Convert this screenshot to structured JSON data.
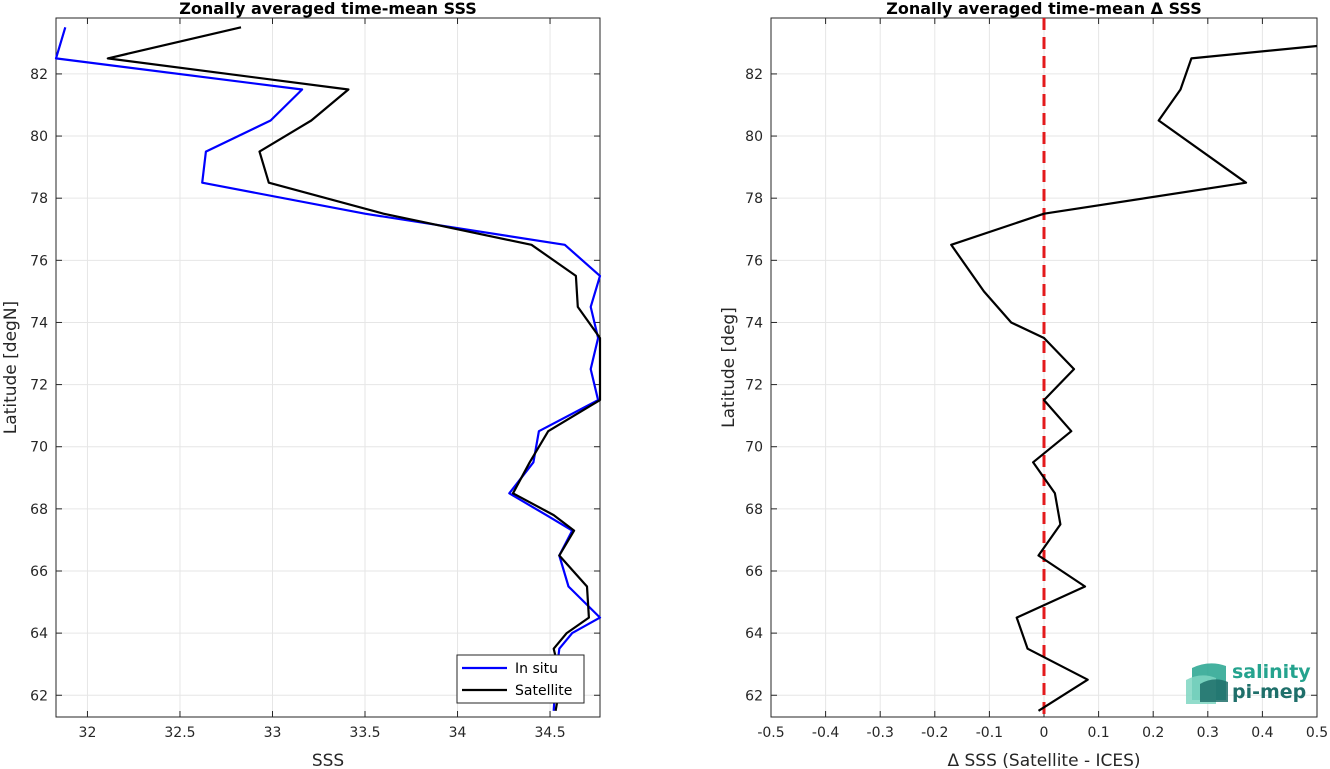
{
  "chart_data": [
    {
      "type": "line",
      "title": "Zonally averaged time-mean SSS",
      "xlabel": "SSS",
      "ylabel": "Latitude [degN]",
      "xlim": [
        31.83,
        34.77
      ],
      "ylim": [
        61.3,
        83.8
      ],
      "xticks": [
        32,
        32.5,
        33,
        33.5,
        34,
        34.5
      ],
      "yticks": [
        62,
        64,
        66,
        68,
        70,
        72,
        74,
        76,
        78,
        80,
        82
      ],
      "grid": true,
      "legend_position": "bottom-right",
      "series": [
        {
          "name": "In situ",
          "color": "#0000ff",
          "points": [
            [
              31.88,
              83.5
            ],
            [
              31.83,
              82.5
            ],
            [
              33.16,
              81.5
            ],
            [
              32.99,
              80.5
            ],
            [
              32.64,
              79.5
            ],
            [
              32.62,
              78.5
            ],
            [
              33.5,
              77.5
            ],
            [
              34.58,
              76.5
            ],
            [
              34.77,
              75.5
            ],
            [
              34.72,
              74.5
            ],
            [
              34.76,
              73.5
            ],
            [
              34.72,
              72.5
            ],
            [
              34.76,
              71.5
            ],
            [
              34.44,
              70.5
            ],
            [
              34.41,
              69.5
            ],
            [
              34.28,
              68.5
            ],
            [
              34.48,
              67.8
            ],
            [
              34.62,
              67.3
            ],
            [
              34.55,
              66.5
            ],
            [
              34.6,
              65.5
            ],
            [
              34.77,
              64.5
            ],
            [
              34.62,
              64.0
            ],
            [
              34.55,
              63.5
            ],
            [
              34.53,
              62.5
            ],
            [
              34.52,
              61.5
            ]
          ]
        },
        {
          "name": "Satellite",
          "color": "#000000",
          "points": [
            [
              32.83,
              83.5
            ],
            [
              32.11,
              82.5
            ],
            [
              33.41,
              81.5
            ],
            [
              33.21,
              80.5
            ],
            [
              32.93,
              79.5
            ],
            [
              32.98,
              78.5
            ],
            [
              33.6,
              77.5
            ],
            [
              34.4,
              76.5
            ],
            [
              34.64,
              75.5
            ],
            [
              34.65,
              74.5
            ],
            [
              34.77,
              73.5
            ],
            [
              34.77,
              72.5
            ],
            [
              34.77,
              71.5
            ],
            [
              34.49,
              70.5
            ],
            [
              34.39,
              69.5
            ],
            [
              34.3,
              68.5
            ],
            [
              34.52,
              67.8
            ],
            [
              34.63,
              67.3
            ],
            [
              34.55,
              66.5
            ],
            [
              34.7,
              65.5
            ],
            [
              34.71,
              64.5
            ],
            [
              34.59,
              64.0
            ],
            [
              34.52,
              63.5
            ],
            [
              34.56,
              62.5
            ],
            [
              34.53,
              61.5
            ]
          ]
        }
      ]
    },
    {
      "type": "line",
      "title": "Zonally averaged time-mean Δ SSS",
      "xlabel": "Δ SSS (Satellite - ICES)",
      "ylabel": "Latitude [deg]",
      "xlim": [
        -0.5,
        0.5
      ],
      "ylim": [
        61.3,
        83.8
      ],
      "xticks": [
        -0.5,
        -0.4,
        -0.3,
        -0.2,
        -0.1,
        0,
        0.1,
        0.2,
        0.3,
        0.4,
        0.5
      ],
      "xticklabels": [
        "-0.5",
        "-0.4",
        "-0.3",
        "-0.2",
        "-0.1",
        "0",
        "0.1",
        "0.2",
        "0.3",
        "0.4",
        "0.5"
      ],
      "yticks": [
        62,
        64,
        66,
        68,
        70,
        72,
        74,
        76,
        78,
        80,
        82
      ],
      "grid": true,
      "reference_line": {
        "x": 0,
        "color": "#e31a1c",
        "style": "dashed"
      },
      "series": [
        {
          "color": "#000000",
          "points": [
            [
              0.5,
              82.9
            ],
            [
              0.27,
              82.5
            ],
            [
              0.25,
              81.5
            ],
            [
              0.21,
              80.5
            ],
            [
              0.37,
              78.5
            ],
            [
              0.0,
              77.5
            ],
            [
              -0.17,
              76.5
            ],
            [
              -0.11,
              75.0
            ],
            [
              -0.06,
              74.0
            ],
            [
              0.0,
              73.5
            ],
            [
              0.055,
              72.5
            ],
            [
              0.0,
              71.5
            ],
            [
              0.05,
              70.5
            ],
            [
              -0.02,
              69.5
            ],
            [
              0.0,
              69.0
            ],
            [
              0.02,
              68.5
            ],
            [
              0.03,
              67.5
            ],
            [
              -0.01,
              66.5
            ],
            [
              0.075,
              65.5
            ],
            [
              -0.05,
              64.5
            ],
            [
              -0.03,
              63.5
            ],
            [
              0.08,
              62.5
            ],
            [
              -0.01,
              61.5
            ]
          ]
        }
      ]
    }
  ],
  "logo": {
    "line1": "salinity",
    "line2": "pi-mep",
    "colors": [
      "#25a38e",
      "#1f6f6a",
      "#7fd6c2"
    ]
  }
}
